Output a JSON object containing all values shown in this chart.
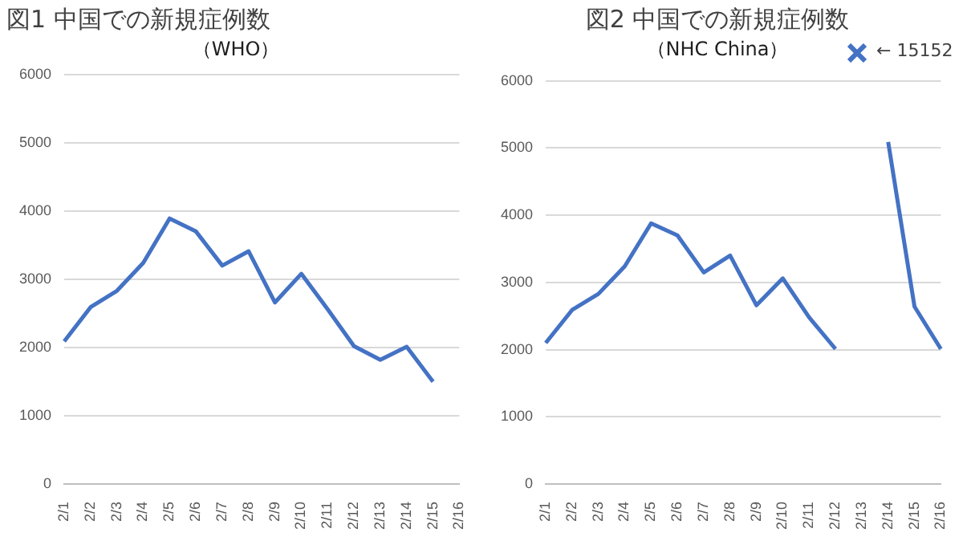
{
  "chart_data": [
    {
      "type": "line",
      "title": "図1 中国での新規症例数",
      "subtitle": "（WHO）",
      "categories": [
        "2/1",
        "2/2",
        "2/3",
        "2/4",
        "2/5",
        "2/6",
        "2/7",
        "2/8",
        "2/9",
        "2/10",
        "2/11",
        "2/12",
        "2/13",
        "2/14",
        "2/15",
        "2/16"
      ],
      "series": [
        {
          "color": "#4472c4",
          "values": [
            2090,
            2590,
            2830,
            3240,
            3890,
            3700,
            3200,
            3410,
            2660,
            3080,
            2560,
            2020,
            1820,
            2010,
            1500,
            null
          ]
        }
      ],
      "ylim": [
        0,
        6000
      ],
      "yticks": [
        0,
        1000,
        2000,
        3000,
        4000,
        5000,
        6000
      ],
      "grid": "y",
      "legend": false,
      "marker": "none"
    },
    {
      "type": "line",
      "title": "図2 中国での新規症例数",
      "subtitle": "（NHC China）",
      "categories": [
        "2/1",
        "2/2",
        "2/3",
        "2/4",
        "2/5",
        "2/6",
        "2/7",
        "2/8",
        "2/9",
        "2/10",
        "2/11",
        "2/12",
        "2/13",
        "2/14",
        "2/15",
        "2/16"
      ],
      "series": [
        {
          "color": "#4472c4",
          "values": [
            2100,
            2590,
            2830,
            3240,
            3880,
            3700,
            3150,
            3400,
            2660,
            3060,
            2480,
            2010,
            null,
            5090,
            2640,
            2010
          ]
        }
      ],
      "ylim": [
        0,
        6000
      ],
      "yticks": [
        0,
        1000,
        2000,
        3000,
        4000,
        5000,
        6000
      ],
      "grid": "y",
      "legend": false,
      "marker": "none",
      "annotations": [
        "← 15152"
      ]
    }
  ]
}
